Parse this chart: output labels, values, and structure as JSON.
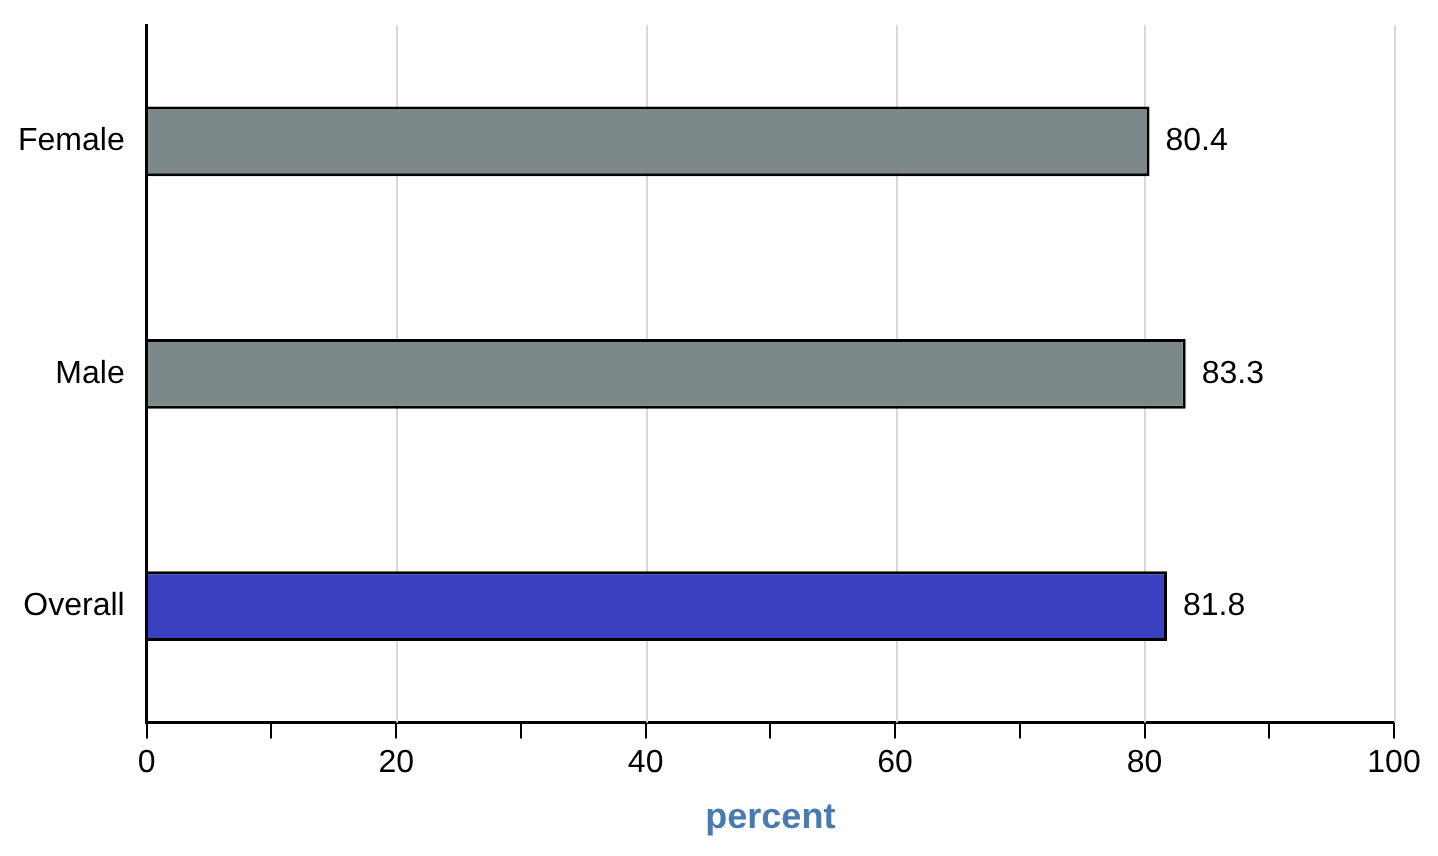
{
  "chart_data": {
    "type": "bar",
    "orientation": "horizontal",
    "xlabel": "percent",
    "categories": [
      "Female",
      "Male",
      "Overall"
    ],
    "values": [
      80.4,
      83.3,
      81.8
    ],
    "colors": [
      "#7d8888",
      "#7d8888",
      "#3a40c0"
    ],
    "xlim": [
      0,
      100
    ],
    "xticks": [
      0,
      {
        "value": 10,
        "label": null
      },
      20,
      {
        "value": 30,
        "label": null
      },
      40,
      {
        "value": 50,
        "label": null
      },
      60,
      {
        "value": 70,
        "label": null
      },
      80,
      {
        "value": 90,
        "label": null
      },
      100
    ],
    "grid": "x",
    "data_labels": true,
    "legend": false
  }
}
